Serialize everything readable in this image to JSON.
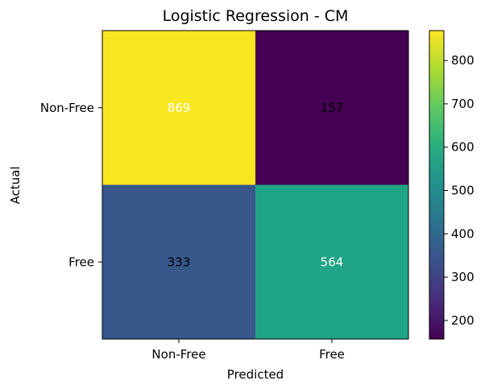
{
  "chart_data": {
    "type": "heatmap",
    "title": "Logistic Regression - CM",
    "xlabel": "Predicted",
    "ylabel": "Actual",
    "x_categories": [
      "Non-Free",
      "Free"
    ],
    "y_categories": [
      "Non-Free",
      "Free"
    ],
    "values": [
      [
        869,
        157
      ],
      [
        333,
        564
      ]
    ],
    "colormap": "viridis",
    "colorbar": {
      "range": [
        157,
        869
      ],
      "ticks": [
        200,
        300,
        400,
        500,
        600,
        700,
        800
      ],
      "tick_labels": [
        "200",
        "300",
        "400",
        "500",
        "600",
        "700",
        "800"
      ]
    },
    "cell_colors": [
      [
        "#f8e621",
        "#440154"
      ],
      [
        "#38588c",
        "#20a486"
      ]
    ],
    "label_colors": [
      [
        "#ffffff",
        "#000000"
      ],
      [
        "#000000",
        "#ffffff"
      ]
    ],
    "grid": false
  }
}
